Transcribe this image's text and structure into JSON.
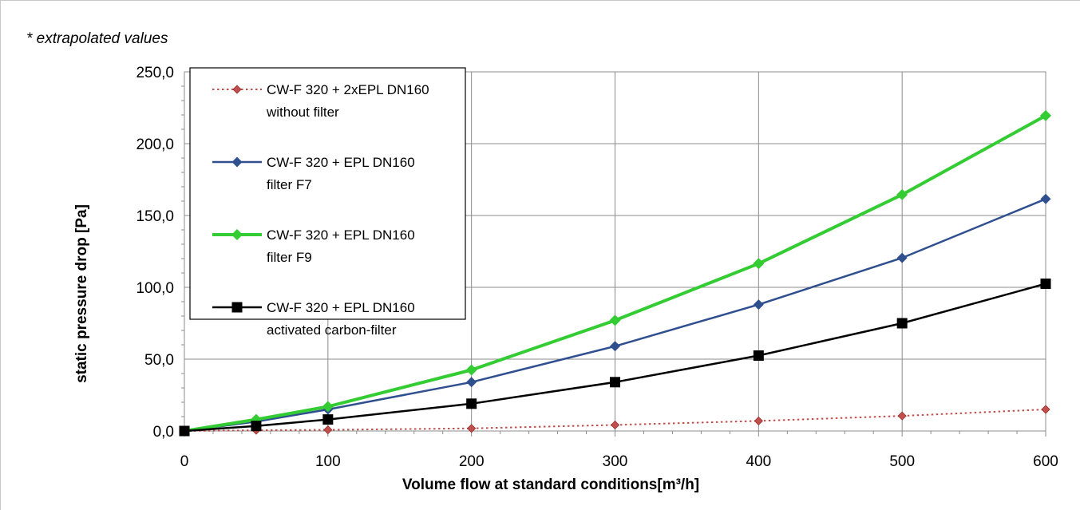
{
  "note": "* extrapolated values",
  "chart_data": {
    "type": "line",
    "xlabel": "Volume flow at standard conditions[m³/h]",
    "ylabel": "static pressure drop [Pa]",
    "xlim": [
      0,
      600
    ],
    "ylim": [
      0,
      250
    ],
    "x_ticks": [
      "0",
      "100",
      "200",
      "300",
      "400",
      "500",
      "600"
    ],
    "y_ticks": [
      "0,0",
      "50,0",
      "100,0",
      "150,0",
      "200,0",
      "250,0"
    ],
    "grid": true,
    "legend_position": "top-left",
    "series": [
      {
        "name_line1": "CW-F 320 + 2xEPL DN160",
        "name_line2": "without filter",
        "color": "#c0504d",
        "marker": "diamond",
        "style": "dotted",
        "x": [
          0,
          50,
          100,
          200,
          300,
          400,
          500,
          600
        ],
        "y": [
          0,
          0.5,
          0.8,
          1.8,
          4.2,
          7.0,
          10.5,
          15.0
        ]
      },
      {
        "name_line1": "CW-F 320 + EPL DN160",
        "name_line2": "filter F7",
        "color": "#2f4f8f",
        "marker": "diamond",
        "style": "solid",
        "x": [
          0,
          50,
          100,
          200,
          300,
          400,
          500,
          600
        ],
        "y": [
          0,
          6.5,
          15.0,
          34.0,
          59.0,
          88.0,
          120.5,
          161.5
        ]
      },
      {
        "name_line1": "CW-F 320 + EPL DN160",
        "name_line2": "filter F9",
        "color": "#33cc33",
        "marker": "diamond",
        "style": "thick",
        "x": [
          0,
          50,
          100,
          200,
          300,
          400,
          500,
          600
        ],
        "y": [
          0,
          8.0,
          17.0,
          42.5,
          77.0,
          116.5,
          164.5,
          219.5
        ]
      },
      {
        "name_line1": "CW-F 320 + EPL DN160",
        "name_line2": "activated carbon-filter",
        "color": "#000000",
        "marker": "square",
        "style": "solid",
        "x": [
          0,
          50,
          100,
          200,
          300,
          400,
          500,
          600
        ],
        "y": [
          0,
          3.5,
          8.0,
          19.0,
          34.0,
          52.5,
          75.0,
          102.5
        ]
      }
    ]
  }
}
